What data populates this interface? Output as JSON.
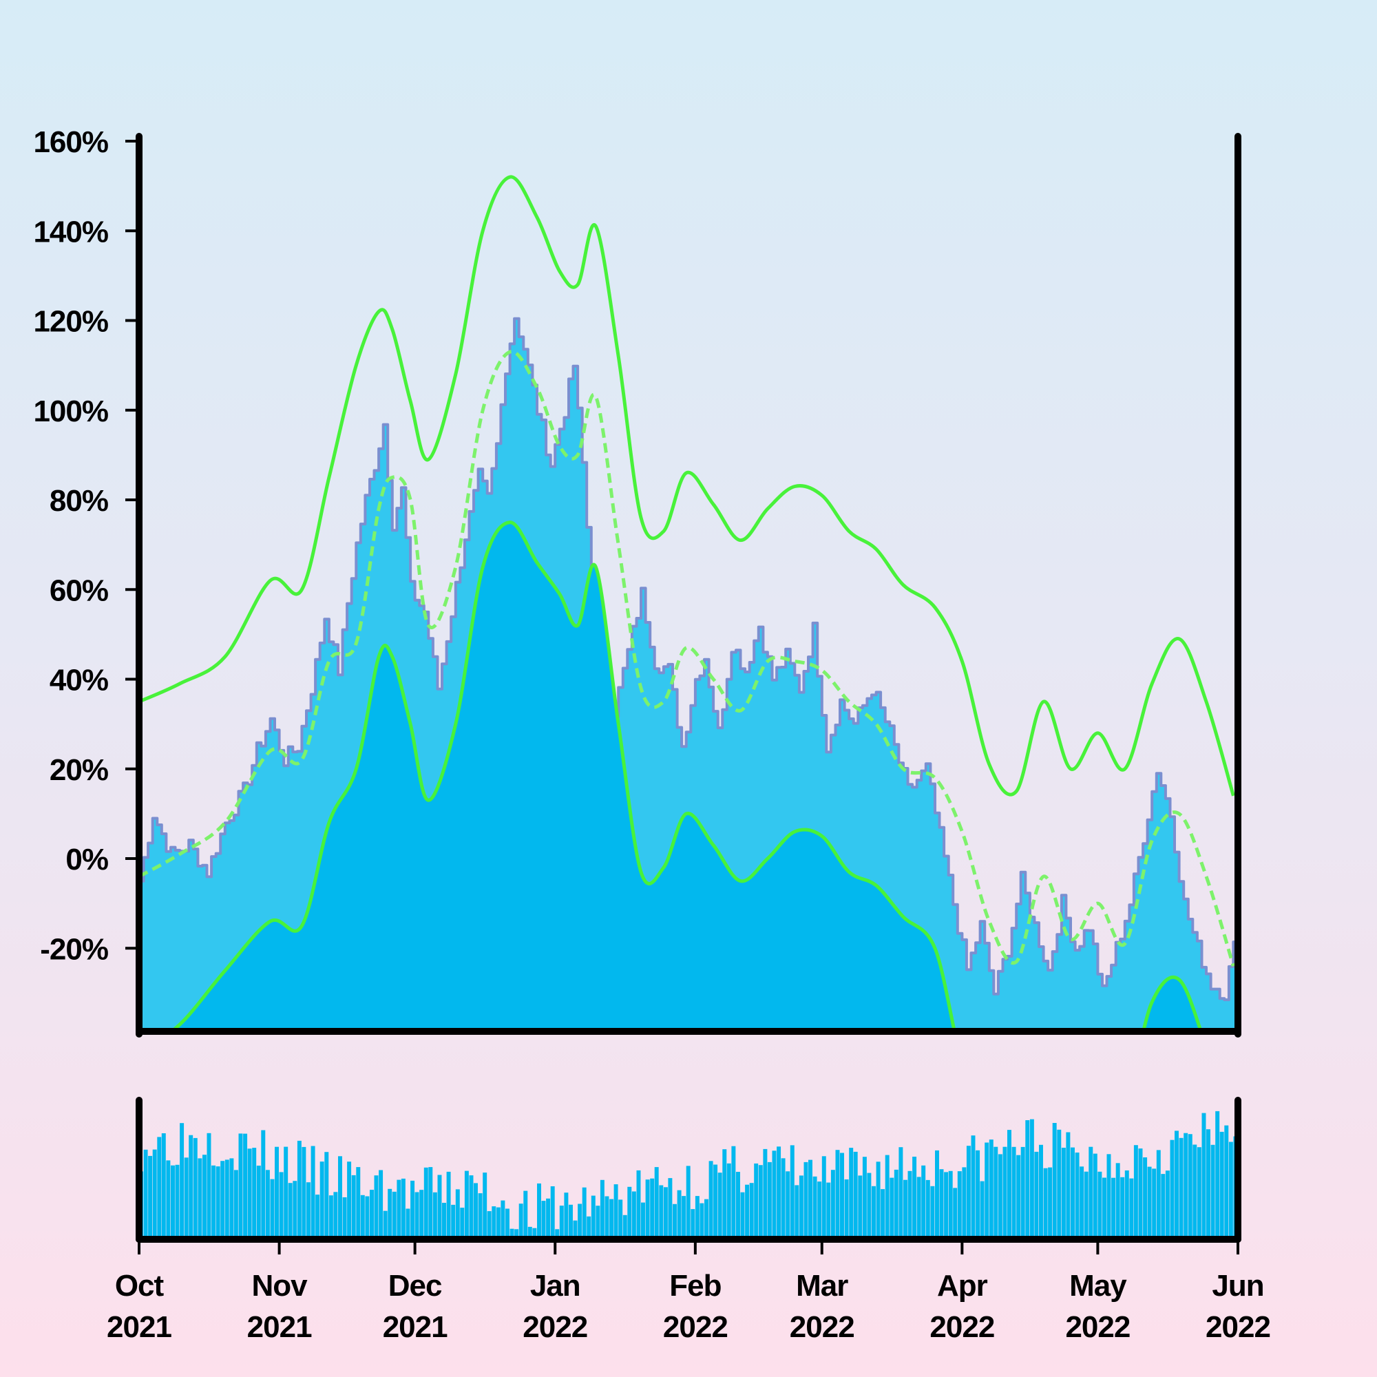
{
  "colors": {
    "background_top": "#d7ecf7",
    "background_bottom": "#fde0ec",
    "price_area": "#33c7f0",
    "price_line": "#7b8fd0",
    "band_fill": "#02b8ee",
    "band_line": "#48f23a",
    "volume_bar": "#02b8ee",
    "axis": "#000000"
  },
  "chart_data": [
    {
      "type": "area",
      "title": "",
      "xlabel": "",
      "ylabel": "",
      "x_range": [
        "2021-10-01",
        "2022-06-01"
      ],
      "ylim": [
        -38,
        160
      ],
      "y_ticks": [
        -20,
        0,
        20,
        40,
        60,
        80,
        100,
        120,
        140,
        160
      ],
      "y_tick_labels": [
        "-20%",
        "0%",
        "20%",
        "40%",
        "60%",
        "80%",
        "100%",
        "120%",
        "140%",
        "160%"
      ],
      "x_ticks": [
        "2021-10-01",
        "2021-11-01",
        "2021-12-01",
        "2022-01-01",
        "2022-02-01",
        "2022-03-01",
        "2022-04-01",
        "2022-05-01",
        "2022-06-01"
      ],
      "x_tick_labels": [
        [
          "Oct",
          "2021"
        ],
        [
          "Nov",
          "2021"
        ],
        [
          "Dec",
          "2021"
        ],
        [
          "Jan",
          "2022"
        ],
        [
          "Feb",
          "2022"
        ],
        [
          "Mar",
          "2022"
        ],
        [
          "Apr",
          "2022"
        ],
        [
          "May",
          "2022"
        ],
        [
          "Jun",
          "2022"
        ]
      ],
      "grid": false,
      "series": [
        {
          "role": "price",
          "style": "filled-area",
          "x": [
            "2021-10-01",
            "2021-10-04",
            "2021-10-08",
            "2021-10-12",
            "2021-10-16",
            "2021-10-20",
            "2021-10-24",
            "2021-10-27",
            "2021-10-30",
            "2021-11-02",
            "2021-11-05",
            "2021-11-08",
            "2021-11-11",
            "2021-11-14",
            "2021-11-16",
            "2021-11-18",
            "2021-11-20",
            "2021-11-22",
            "2021-11-24",
            "2021-11-26",
            "2021-11-28",
            "2021-11-30",
            "2021-12-03",
            "2021-12-06",
            "2021-12-09",
            "2021-12-12",
            "2021-12-15",
            "2021-12-17",
            "2021-12-19",
            "2021-12-21",
            "2021-12-23",
            "2021-12-25",
            "2021-12-28",
            "2021-12-31",
            "2022-01-03",
            "2022-01-05",
            "2022-01-07",
            "2022-01-09",
            "2022-01-11",
            "2022-01-14",
            "2022-01-17",
            "2022-01-20",
            "2022-01-23",
            "2022-01-26",
            "2022-01-29",
            "2022-02-01",
            "2022-02-03",
            "2022-02-06",
            "2022-02-09",
            "2022-02-12",
            "2022-02-15",
            "2022-02-18",
            "2022-02-21",
            "2022-02-24",
            "2022-02-27",
            "2022-03-02",
            "2022-03-05",
            "2022-03-08",
            "2022-03-12",
            "2022-03-16",
            "2022-03-20",
            "2022-03-24",
            "2022-03-27",
            "2022-03-30",
            "2022-04-02",
            "2022-04-05",
            "2022-04-08",
            "2022-04-11",
            "2022-04-14",
            "2022-04-17",
            "2022-04-20",
            "2022-04-23",
            "2022-04-26",
            "2022-04-29",
            "2022-05-02",
            "2022-05-05",
            "2022-05-08",
            "2022-05-11",
            "2022-05-14",
            "2022-05-17",
            "2022-05-20",
            "2022-05-23",
            "2022-05-26",
            "2022-05-29",
            "2022-05-31"
          ],
          "values": [
            -5,
            10,
            1,
            3,
            -3,
            8,
            15,
            24,
            31,
            22,
            25,
            38,
            54,
            42,
            57,
            70,
            80,
            88,
            97,
            75,
            82,
            60,
            55,
            38,
            55,
            72,
            85,
            80,
            92,
            110,
            121,
            114,
            100,
            88,
            100,
            110,
            88,
            60,
            40,
            33,
            46,
            59,
            44,
            42,
            25,
            40,
            45,
            28,
            48,
            42,
            52,
            40,
            45,
            38,
            51,
            25,
            35,
            30,
            38,
            28,
            15,
            20,
            5,
            -10,
            -25,
            -15,
            -30,
            -20,
            -5,
            -15,
            -25,
            -10,
            -20,
            -15,
            -30,
            -20,
            -10,
            5,
            20,
            10,
            -10,
            -20,
            -28,
            -30,
            -20
          ]
        },
        {
          "role": "moving-average",
          "style": "dashed-line",
          "x": [
            "2021-10-01",
            "2021-10-10",
            "2021-10-20",
            "2021-10-30",
            "2021-11-06",
            "2021-11-12",
            "2021-11-18",
            "2021-11-23",
            "2021-11-26",
            "2021-11-30",
            "2021-12-04",
            "2021-12-10",
            "2021-12-16",
            "2021-12-22",
            "2021-12-28",
            "2022-01-02",
            "2022-01-06",
            "2022-01-10",
            "2022-01-15",
            "2022-01-20",
            "2022-01-25",
            "2022-01-30",
            "2022-02-05",
            "2022-02-11",
            "2022-02-17",
            "2022-02-23",
            "2022-03-01",
            "2022-03-07",
            "2022-03-13",
            "2022-03-19",
            "2022-03-26",
            "2022-04-01",
            "2022-04-07",
            "2022-04-13",
            "2022-04-19",
            "2022-04-25",
            "2022-05-01",
            "2022-05-07",
            "2022-05-13",
            "2022-05-19",
            "2022-05-25",
            "2022-05-31"
          ],
          "values": [
            -4,
            1,
            8,
            24,
            22,
            44,
            48,
            78,
            85,
            80,
            52,
            65,
            100,
            113,
            105,
            92,
            90,
            103,
            70,
            38,
            35,
            47,
            40,
            33,
            44,
            44,
            42,
            35,
            30,
            20,
            18,
            6,
            -14,
            -23,
            -4,
            -18,
            -10,
            -19,
            4,
            10,
            -4,
            -24
          ]
        },
        {
          "role": "upper-band",
          "style": "line",
          "x": [
            "2021-10-01",
            "2021-10-10",
            "2021-10-20",
            "2021-10-30",
            "2021-11-06",
            "2021-11-12",
            "2021-11-18",
            "2021-11-23",
            "2021-11-26",
            "2021-11-30",
            "2021-12-04",
            "2021-12-10",
            "2021-12-16",
            "2021-12-22",
            "2021-12-28",
            "2022-01-02",
            "2022-01-06",
            "2022-01-10",
            "2022-01-15",
            "2022-01-20",
            "2022-01-25",
            "2022-01-30",
            "2022-02-05",
            "2022-02-11",
            "2022-02-17",
            "2022-02-23",
            "2022-03-01",
            "2022-03-07",
            "2022-03-13",
            "2022-03-19",
            "2022-03-26",
            "2022-04-01",
            "2022-04-07",
            "2022-04-13",
            "2022-04-19",
            "2022-04-25",
            "2022-05-01",
            "2022-05-07",
            "2022-05-13",
            "2022-05-19",
            "2022-05-25",
            "2022-05-31"
          ],
          "values": [
            35,
            39,
            45,
            62,
            60,
            85,
            110,
            122,
            118,
            102,
            89,
            108,
            140,
            152,
            143,
            131,
            128,
            141,
            112,
            76,
            73,
            86,
            79,
            71,
            78,
            83,
            81,
            73,
            69,
            61,
            56,
            44,
            21,
            15,
            35,
            20,
            28,
            20,
            39,
            49,
            35,
            14
          ]
        },
        {
          "role": "lower-band",
          "style": "line-filled-below",
          "x": [
            "2021-10-01",
            "2021-10-10",
            "2021-10-20",
            "2021-10-30",
            "2021-11-06",
            "2021-11-12",
            "2021-11-18",
            "2021-11-23",
            "2021-11-26",
            "2021-11-30",
            "2021-12-04",
            "2021-12-10",
            "2021-12-16",
            "2021-12-22",
            "2021-12-28",
            "2022-01-02",
            "2022-01-06",
            "2022-01-10",
            "2022-01-15",
            "2022-01-20",
            "2022-01-25",
            "2022-01-30",
            "2022-02-05",
            "2022-02-11",
            "2022-02-17",
            "2022-02-23",
            "2022-03-01",
            "2022-03-07",
            "2022-03-13",
            "2022-03-19",
            "2022-03-26",
            "2022-04-01",
            "2022-04-07",
            "2022-04-13",
            "2022-04-19",
            "2022-04-25",
            "2022-05-01",
            "2022-05-07",
            "2022-05-13",
            "2022-05-19",
            "2022-05-25",
            "2022-05-31"
          ],
          "values": [
            -43,
            -37,
            -25,
            -14,
            -15,
            8,
            20,
            45,
            45,
            30,
            13,
            30,
            65,
            75,
            66,
            59,
            52,
            65,
            30,
            -3,
            -2,
            10,
            3,
            -5,
            0,
            6,
            5,
            -3,
            -6,
            -13,
            -20,
            -45,
            -54,
            -60,
            -40,
            -54,
            -45,
            -53,
            -32,
            -27,
            -42,
            -60
          ]
        }
      ]
    },
    {
      "type": "bar",
      "title": "",
      "xlabel": "",
      "ylabel": "",
      "role": "volume",
      "x_range": [
        "2021-10-01",
        "2022-06-01"
      ],
      "ylim": [
        0,
        100
      ],
      "profile": {
        "x": [
          "2021-10-01",
          "2021-10-15",
          "2021-11-01",
          "2021-11-15",
          "2021-12-01",
          "2021-12-15",
          "2021-12-25",
          "2022-01-05",
          "2022-01-20",
          "2022-02-01",
          "2022-02-15",
          "2022-03-01",
          "2022-03-15",
          "2022-04-01",
          "2022-04-15",
          "2022-05-01",
          "2022-05-15",
          "2022-05-31"
        ],
        "values": [
          68,
          74,
          56,
          40,
          32,
          36,
          18,
          22,
          35,
          40,
          55,
          44,
          52,
          54,
          72,
          55,
          66,
          78
        ]
      }
    }
  ]
}
